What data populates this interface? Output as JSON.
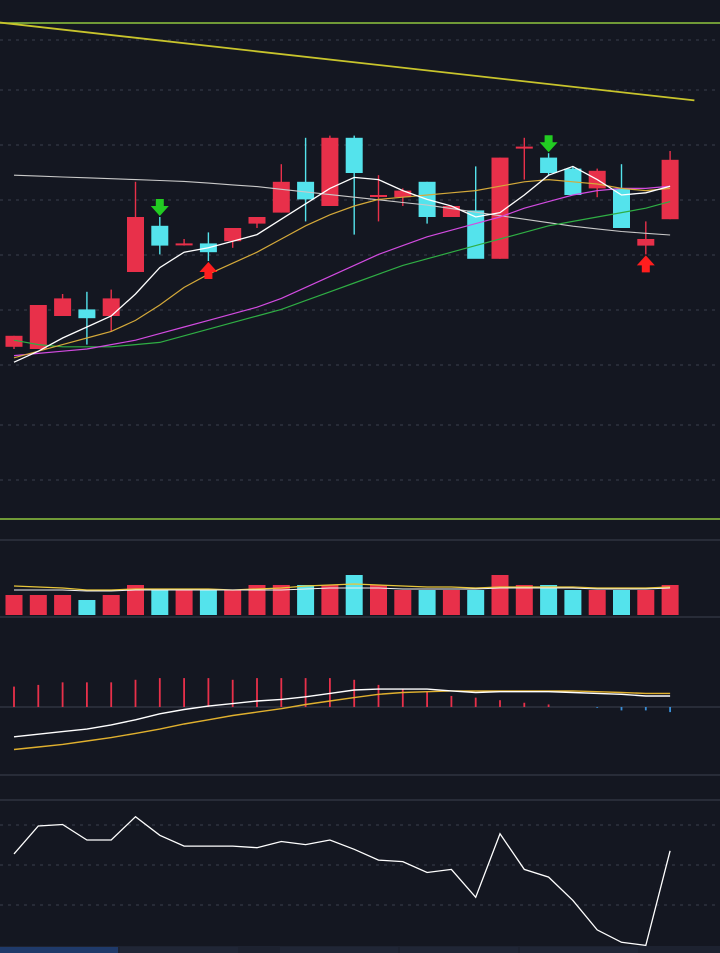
{
  "colors": {
    "background": "#141721",
    "grid": "#3a3f4d",
    "separator": "#8ec63f",
    "up": "#e8304a",
    "down": "#54e3ec",
    "ma_white": "#ffffff",
    "ma_gold": "#d4a93a",
    "ma_magenta": "#d24be0",
    "ma_green": "#2fae44",
    "trend_line": "#c8c42c",
    "arrow_up": "#ff1e1e",
    "arrow_down": "#22cc22"
  },
  "chart_data": [
    {
      "type": "candlestick",
      "panel": "price",
      "title": "",
      "grid": true,
      "ylim": [
        0,
        100
      ],
      "candles": [
        {
          "o": 28.0,
          "h": 30.5,
          "l": 27.5,
          "c": 30.5
        },
        {
          "o": 27.5,
          "h": 37.5,
          "l": 27.5,
          "c": 37.5
        },
        {
          "o": 35.0,
          "h": 40.0,
          "l": 35.0,
          "c": 39.0
        },
        {
          "o": 36.5,
          "h": 40.5,
          "l": 28.5,
          "c": 34.5
        },
        {
          "o": 35.0,
          "h": 41.0,
          "l": 31.5,
          "c": 39.0
        },
        {
          "o": 45.0,
          "h": 65.5,
          "l": 45.0,
          "c": 57.5
        },
        {
          "o": 55.5,
          "h": 57.5,
          "l": 49.0,
          "c": 51.0
        },
        {
          "o": 51.5,
          "h": 52.5,
          "l": 51.0,
          "c": 51.5
        },
        {
          "o": 51.5,
          "h": 54.0,
          "l": 47.5,
          "c": 49.5
        },
        {
          "o": 52.0,
          "h": 55.0,
          "l": 50.5,
          "c": 55.0
        },
        {
          "o": 56.0,
          "h": 57.5,
          "l": 55.0,
          "c": 57.5
        },
        {
          "o": 58.5,
          "h": 69.5,
          "l": 58.5,
          "c": 65.5
        },
        {
          "o": 65.5,
          "h": 75.5,
          "l": 56.5,
          "c": 61.5
        },
        {
          "o": 60.0,
          "h": 76.0,
          "l": 60.0,
          "c": 75.5
        },
        {
          "o": 75.5,
          "h": 76.0,
          "l": 53.5,
          "c": 67.5
        },
        {
          "o": 62.5,
          "h": 67.0,
          "l": 56.5,
          "c": 62.5
        },
        {
          "o": 62.0,
          "h": 64.0,
          "l": 60.0,
          "c": 63.5
        },
        {
          "o": 65.5,
          "h": 65.5,
          "l": 56.0,
          "c": 57.5
        },
        {
          "o": 57.5,
          "h": 60.0,
          "l": 57.5,
          "c": 60.0
        },
        {
          "o": 59.0,
          "h": 69.0,
          "l": 48.5,
          "c": 48.0
        },
        {
          "o": 48.0,
          "h": 71.0,
          "l": 48.0,
          "c": 71.0
        },
        {
          "o": 73.5,
          "h": 75.5,
          "l": 66.0,
          "c": 73.5
        },
        {
          "o": 71.0,
          "h": 72.0,
          "l": 67.0,
          "c": 67.5
        },
        {
          "o": 68.5,
          "h": 69.0,
          "l": 62.5,
          "c": 62.5
        },
        {
          "o": 64.0,
          "h": 68.5,
          "l": 62.0,
          "c": 68.0
        },
        {
          "o": 64.0,
          "h": 69.5,
          "l": 55.0,
          "c": 55.0
        },
        {
          "o": 51.0,
          "h": 56.5,
          "l": 49.0,
          "c": 52.5
        },
        {
          "o": 57.0,
          "h": 72.5,
          "l": 57.0,
          "c": 70.5
        }
      ],
      "ma_white": [
        24.5,
        27.0,
        30.0,
        32.5,
        35.0,
        40.0,
        46.0,
        49.5,
        50.5,
        52.0,
        53.5,
        57.0,
        60.5,
        64.0,
        66.5,
        66.0,
        63.5,
        61.5,
        60.0,
        57.5,
        58.5,
        62.5,
        67.0,
        69.0,
        66.0,
        62.5,
        63.0,
        64.5
      ],
      "ma_gold": [
        25.5,
        27.0,
        28.5,
        30.0,
        31.5,
        34.0,
        37.5,
        41.5,
        44.5,
        47.0,
        49.5,
        52.5,
        55.5,
        58.0,
        60.0,
        61.5,
        62.0,
        62.5,
        63.0,
        63.5,
        64.5,
        65.5,
        66.0,
        65.5,
        65.0,
        64.0,
        63.5,
        64.0
      ],
      "ma_magenta": [
        26.0,
        26.5,
        27.0,
        27.5,
        28.5,
        29.5,
        31.0,
        32.5,
        34.0,
        35.5,
        37.0,
        39.0,
        41.5,
        44.0,
        46.5,
        49.0,
        51.0,
        53.0,
        54.5,
        56.0,
        57.5,
        59.5,
        61.0,
        62.5,
        63.5,
        64.0,
        64.0,
        64.5
      ],
      "ma_green": [
        29.5,
        28.5,
        28.0,
        28.0,
        28.0,
        28.5,
        29.0,
        30.5,
        32.0,
        33.5,
        35.0,
        36.5,
        38.5,
        40.5,
        42.5,
        44.5,
        46.5,
        48.0,
        49.5,
        51.0,
        52.5,
        54.0,
        55.5,
        56.5,
        57.5,
        58.5,
        59.5,
        61.0
      ],
      "ma_long": [
        67.0,
        66.8,
        66.6,
        66.4,
        66.2,
        66.0,
        65.8,
        65.6,
        65.2,
        64.8,
        64.4,
        63.8,
        63.2,
        62.6,
        62.0,
        61.4,
        60.8,
        60.2,
        59.4,
        58.6,
        57.8,
        57.0,
        56.2,
        55.4,
        54.8,
        54.2,
        53.8,
        53.4
      ],
      "trend_line": [
        [
          -3.5,
          103.5
        ],
        [
          28,
          84
        ]
      ],
      "signals": [
        {
          "i": 6,
          "dir": "down"
        },
        {
          "i": 8,
          "dir": "up"
        },
        {
          "i": 22,
          "dir": "down"
        },
        {
          "i": 26,
          "dir": "up"
        }
      ]
    },
    {
      "type": "bar",
      "panel": "volume",
      "title": "",
      "grid": false,
      "ylim": [
        0,
        10
      ],
      "values": [
        4,
        4,
        4,
        3,
        4,
        6,
        5,
        5,
        5,
        5,
        6,
        6,
        6,
        6,
        8,
        6,
        5,
        5,
        5,
        5,
        8,
        6,
        6,
        5,
        5,
        5,
        5,
        6
      ],
      "ma_gold": [
        5.8,
        5.6,
        5.4,
        5.0,
        5.0,
        5.2,
        5.2,
        5.2,
        5.2,
        5.0,
        5.2,
        5.4,
        5.8,
        6.0,
        6.2,
        6.0,
        5.8,
        5.6,
        5.6,
        5.4,
        5.6,
        5.6,
        5.6,
        5.6,
        5.4,
        5.4,
        5.4,
        5.6
      ],
      "ma_white": [
        5.0,
        5.0,
        5.0,
        4.8,
        4.8,
        5.0,
        5.0,
        5.0,
        5.0,
        5.0,
        5.0,
        5.0,
        5.2,
        5.4,
        5.4,
        5.4,
        5.2,
        5.2,
        5.2,
        5.2,
        5.4,
        5.4,
        5.4,
        5.4,
        5.2,
        5.2,
        5.2,
        5.4
      ]
    },
    {
      "type": "bar",
      "panel": "macd",
      "title": "",
      "grid": false,
      "ylim": [
        -100,
        100
      ],
      "values": [
        24,
        26,
        29,
        29,
        29,
        32,
        34,
        34,
        34,
        32,
        34,
        34,
        34,
        34,
        32,
        26,
        21,
        18,
        13,
        11,
        8,
        5,
        3,
        0,
        -1,
        -4,
        -4,
        -6
      ],
      "dif": [
        -35,
        -32,
        -29,
        -26,
        -21,
        -15,
        -8,
        -3,
        1,
        4,
        7,
        9,
        12,
        16,
        20,
        21,
        21,
        21,
        19,
        17,
        18,
        18,
        18,
        17,
        16,
        15,
        13,
        13
      ],
      "dea": [
        -50,
        -47,
        -44,
        -40,
        -36,
        -31,
        -26,
        -20,
        -15,
        -10,
        -6,
        -2,
        3,
        7,
        11,
        15,
        17,
        18,
        19,
        19,
        19,
        19,
        19,
        19,
        18,
        17,
        16,
        16
      ]
    },
    {
      "type": "line",
      "panel": "oscillator",
      "title": "",
      "grid": true,
      "ylim": [
        0,
        100
      ],
      "values": [
        62,
        80,
        81,
        71,
        71,
        86,
        74,
        67,
        67,
        67,
        66,
        70,
        68,
        71,
        65,
        58,
        57,
        50,
        52,
        34,
        75,
        52,
        47,
        32,
        13,
        5,
        3,
        64
      ]
    }
  ]
}
